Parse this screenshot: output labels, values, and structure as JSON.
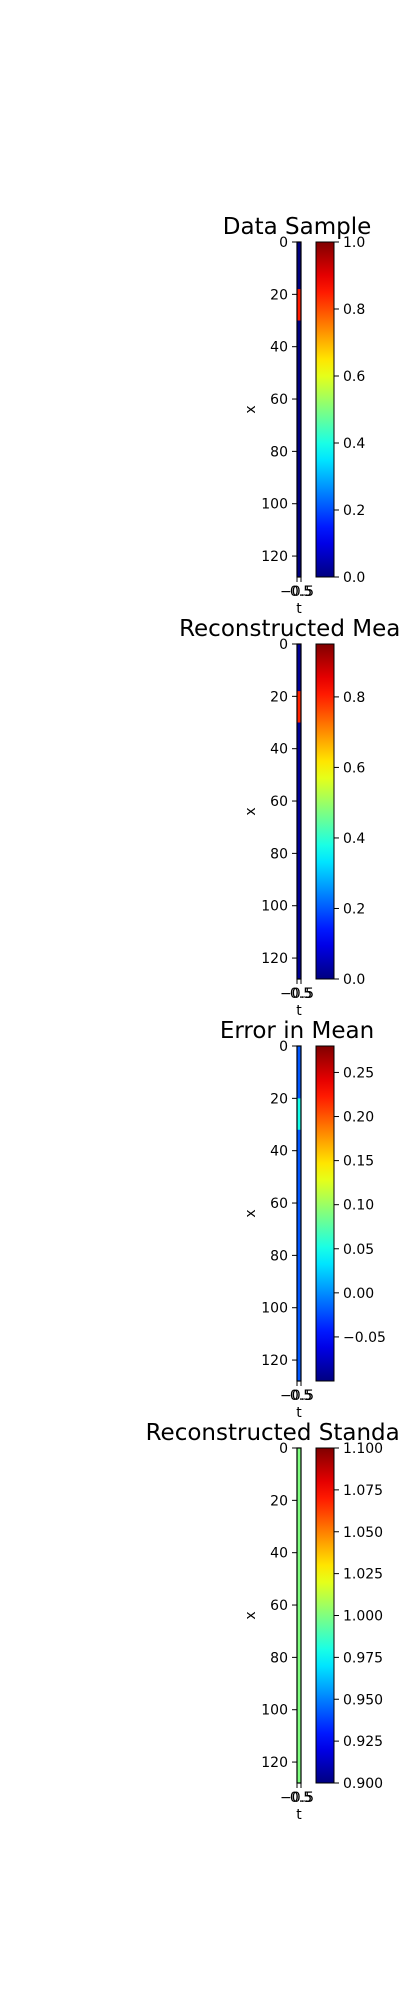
{
  "chart_data": [
    {
      "type": "heatmap",
      "title": "Data Sample",
      "xlabel": "t",
      "ylabel": "x",
      "x_ticks": [
        "−0.5",
        "0.5"
      ],
      "y_ticks": [
        "0",
        "20",
        "40",
        "60",
        "80",
        "100",
        "120"
      ],
      "ylim": [
        128,
        0
      ],
      "color_range": [
        0.0,
        1.0
      ],
      "colorbar_ticks": [
        "0.0",
        "0.2",
        "0.4",
        "0.6",
        "0.8",
        "1.0"
      ],
      "colorbar_values": [
        0.0,
        0.2,
        0.4,
        0.6,
        0.8,
        1.0
      ],
      "background_value": 0.0,
      "feature": {
        "x_start": 18,
        "x_end": 30,
        "value": 0.85
      }
    },
    {
      "type": "heatmap",
      "title": "Reconstructed Mean",
      "xlabel": "t",
      "ylabel": "x",
      "x_ticks": [
        "−0.5",
        "0.5"
      ],
      "y_ticks": [
        "0",
        "20",
        "40",
        "60",
        "80",
        "100",
        "120"
      ],
      "ylim": [
        128,
        0
      ],
      "color_range": [
        0.0,
        0.95
      ],
      "colorbar_ticks": [
        "0.0",
        "0.2",
        "0.4",
        "0.6",
        "0.8"
      ],
      "colorbar_values": [
        0.0,
        0.2,
        0.4,
        0.6,
        0.8
      ],
      "background_value": 0.02,
      "feature": {
        "x_start": 18,
        "x_end": 30,
        "value": 0.8
      }
    },
    {
      "type": "heatmap",
      "title": "Error in Mean",
      "xlabel": "t",
      "ylabel": "x",
      "x_ticks": [
        "−0.5",
        "0.5"
      ],
      "y_ticks": [
        "0",
        "20",
        "40",
        "60",
        "80",
        "100",
        "120"
      ],
      "ylim": [
        128,
        0
      ],
      "color_range": [
        -0.1,
        0.28
      ],
      "colorbar_ticks": [
        "−0.05",
        "0.00",
        "0.05",
        "0.10",
        "0.15",
        "0.20",
        "0.25"
      ],
      "colorbar_values": [
        -0.05,
        0.0,
        0.05,
        0.1,
        0.15,
        0.2,
        0.25
      ],
      "background_value": -0.02,
      "feature": {
        "x_start": 20,
        "x_end": 32,
        "value": 0.05
      }
    },
    {
      "type": "heatmap",
      "title": "Reconstructed Standard D",
      "xlabel": "t",
      "ylabel": "x",
      "x_ticks": [
        "−0.5",
        "0.5"
      ],
      "y_ticks": [
        "0",
        "20",
        "40",
        "60",
        "80",
        "100",
        "120"
      ],
      "ylim": [
        128,
        0
      ],
      "color_range": [
        0.9,
        1.1
      ],
      "colorbar_ticks": [
        "0.900",
        "0.925",
        "0.950",
        "0.975",
        "1.000",
        "1.025",
        "1.050",
        "1.075",
        "1.100"
      ],
      "colorbar_values": [
        0.9,
        0.925,
        0.95,
        0.975,
        1.0,
        1.025,
        1.05,
        1.075,
        1.1
      ],
      "background_value": 1.0,
      "feature": null
    }
  ]
}
